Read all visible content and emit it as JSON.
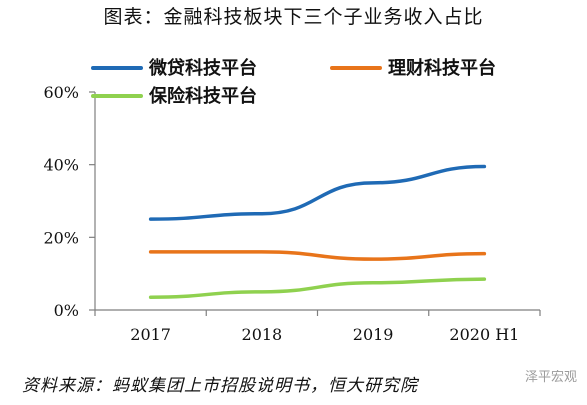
{
  "title": "图表：金融科技板块下三个子业务收入占比",
  "source": "资料来源：蚂蚁集团上市招股说明书，恒大研究院",
  "watermark": "泽平宏观",
  "chart_data": {
    "type": "line",
    "title": "图表：金融科技板块下三个子业务收入占比",
    "xlabel": "",
    "ylabel": "",
    "categories": [
      "2017",
      "2018",
      "2019",
      "2020 H1"
    ],
    "ylim": [
      0,
      60
    ],
    "yticks": [
      0,
      20,
      40,
      60
    ],
    "ytick_labels": [
      "0%",
      "20%",
      "40%",
      "60%"
    ],
    "grid": false,
    "legend_position": "top",
    "smooth": true,
    "series": [
      {
        "name": "微贷科技平台",
        "values": [
          25,
          26.5,
          35,
          39.5
        ],
        "color": "#1f6ab5"
      },
      {
        "name": "理财科技平台",
        "values": [
          16,
          16,
          14,
          15.5
        ],
        "color": "#e8741a"
      },
      {
        "name": "保险科技平台",
        "values": [
          3.5,
          5,
          7.5,
          8.5
        ],
        "color": "#8fd14f"
      }
    ]
  }
}
